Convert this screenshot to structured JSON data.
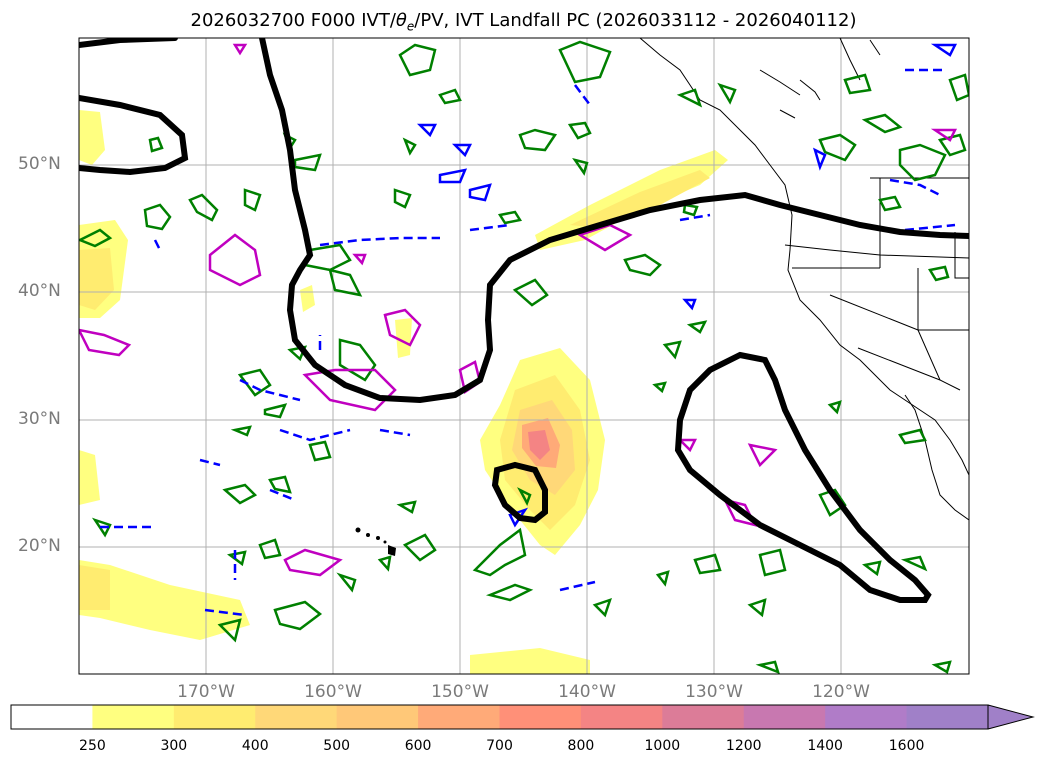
{
  "title": "2026032700 F000 IVT/θe/PV, IVT Landfall PC (2026033112 - 2026040112)",
  "title_parts": {
    "prefix": "2026032700 F000 IVT/",
    "theta": "θ",
    "sub": "e",
    "suffix": "/PV, IVT Landfall PC (2026033112 - 2026040112)"
  },
  "map": {
    "lat_labels": [
      "50°N",
      "40°N",
      "30°N",
      "20°N"
    ],
    "lon_labels": [
      "170°W",
      "160°W",
      "150°W",
      "140°W",
      "130°W",
      "120°W"
    ],
    "contour_colors": {
      "landfall": "#000000",
      "theta_e": "#008000",
      "pv_neg": "#0000ff",
      "pv_pos": "#c000c0",
      "coast": "#000000"
    }
  },
  "colorbar": {
    "ticks": [
      "250",
      "300",
      "400",
      "500",
      "600",
      "700",
      "800",
      "1000",
      "1200",
      "1400",
      "1600"
    ],
    "colors": [
      "#ffff80",
      "#ffec70",
      "#ffd878",
      "#ffc878",
      "#ffaa78",
      "#ff9078",
      "#f48484",
      "#dc7c98",
      "#c878b0",
      "#b07cc8",
      "#a080c8"
    ]
  }
}
